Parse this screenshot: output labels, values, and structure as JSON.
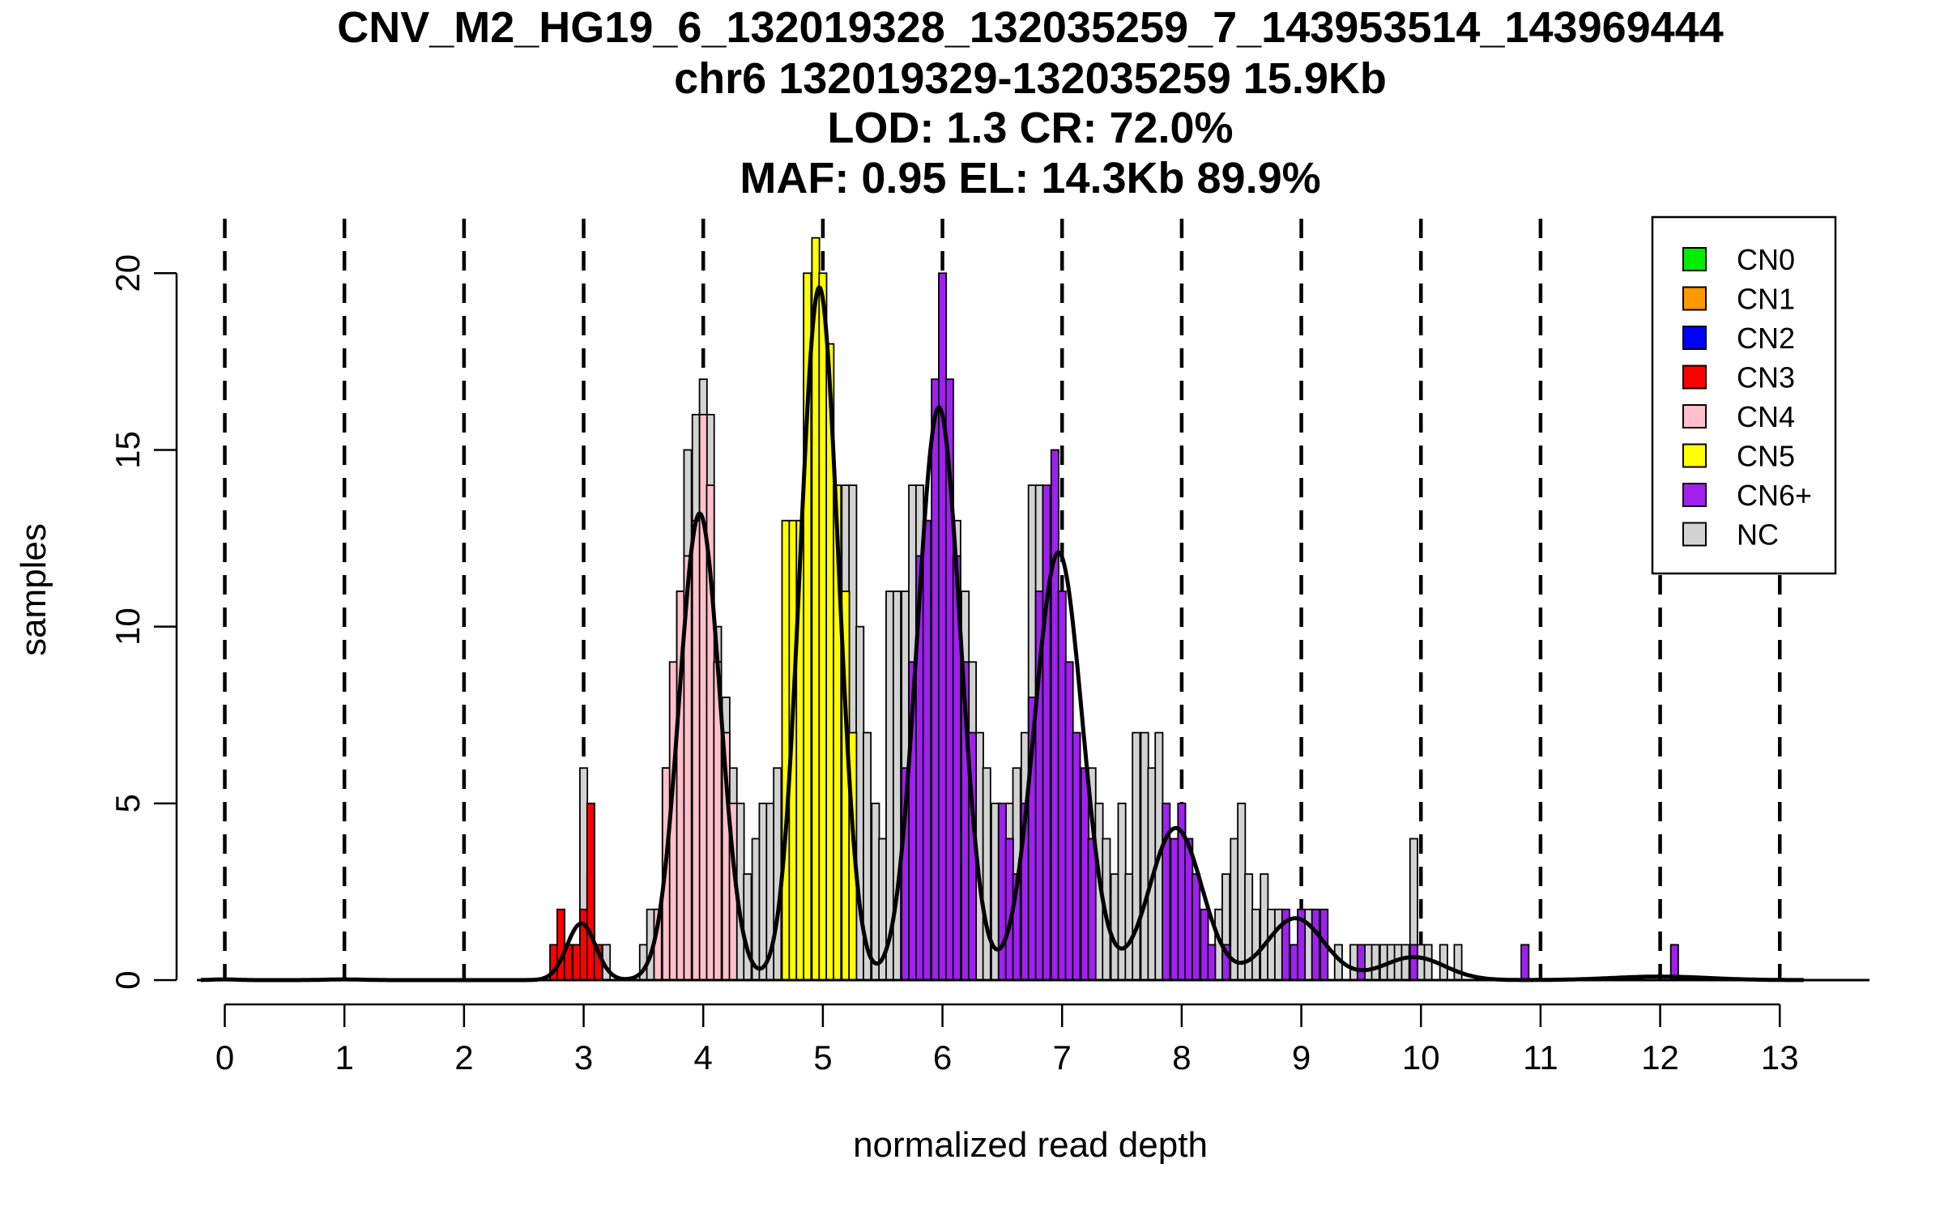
{
  "chart_data": {
    "type": "bar",
    "title_lines": [
      "CNV_M2_HG19_6_132019328_132035259_7_143953514_143969444",
      "chr6 132019329-132035259 15.9Kb",
      "LOD: 1.3 CR: 72.0%",
      "MAF: 0.95 EL: 14.3Kb 89.9%"
    ],
    "xlabel": "normalized read depth",
    "ylabel": "samples",
    "xlim": [
      -0.2,
      13.75
    ],
    "ylim": [
      0,
      22
    ],
    "x_ticks": [
      0,
      1,
      2,
      3,
      4,
      5,
      6,
      7,
      8,
      9,
      10,
      11,
      12,
      13
    ],
    "x_tick_labels": [
      "0",
      "1",
      "2",
      "3",
      "4",
      "5",
      "6",
      "7",
      "8",
      "9",
      "10",
      "11",
      "12",
      "13"
    ],
    "y_ticks": [
      0,
      5,
      10,
      15,
      20
    ],
    "y_tick_labels": [
      "0",
      "5",
      "10",
      "15",
      "20"
    ],
    "bin_width": 0.0625,
    "vlines_dashed": [
      0,
      1,
      2,
      3,
      4,
      5,
      6,
      7,
      8,
      9,
      10,
      11,
      12,
      13
    ],
    "grid": false,
    "legend": {
      "placement": "top-right",
      "items": [
        {
          "label": "CN0",
          "color": "#00ee00"
        },
        {
          "label": "CN1",
          "color": "#ff9900"
        },
        {
          "label": "CN2",
          "color": "#0000ff"
        },
        {
          "label": "CN3",
          "color": "#ff0000"
        },
        {
          "label": "CN4",
          "color": "#ffc0cb"
        },
        {
          "label": "CN5",
          "color": "#ffff00"
        },
        {
          "label": "CN6+",
          "color": "#a020f0"
        },
        {
          "label": "NC",
          "color": "#d3d3d3"
        }
      ]
    },
    "bars": {
      "CN3": [
        [
          2.75,
          1
        ],
        [
          2.81,
          2
        ],
        [
          2.87,
          1
        ],
        [
          2.94,
          1
        ],
        [
          3.0,
          2
        ],
        [
          3.06,
          5
        ],
        [
          3.12,
          1
        ]
      ],
      "CN4": [
        [
          3.62,
          2
        ],
        [
          3.69,
          6
        ],
        [
          3.75,
          9
        ],
        [
          3.81,
          11
        ],
        [
          3.87,
          12
        ],
        [
          3.94,
          13
        ],
        [
          4.0,
          16
        ],
        [
          4.06,
          14
        ],
        [
          4.12,
          9
        ],
        [
          4.19,
          7
        ],
        [
          4.25,
          5
        ]
      ],
      "CN5": [
        [
          4.69,
          13
        ],
        [
          4.75,
          13
        ],
        [
          4.81,
          13
        ],
        [
          4.87,
          20
        ],
        [
          4.94,
          21
        ],
        [
          5.0,
          20
        ],
        [
          5.06,
          18
        ],
        [
          5.12,
          14
        ],
        [
          5.19,
          11
        ],
        [
          5.25,
          7
        ]
      ],
      "CN6+": [
        [
          5.69,
          6
        ],
        [
          5.75,
          9
        ],
        [
          5.81,
          12
        ],
        [
          5.87,
          13
        ],
        [
          5.94,
          17
        ],
        [
          6.0,
          20
        ],
        [
          6.06,
          17
        ],
        [
          6.12,
          12
        ],
        [
          6.19,
          9
        ],
        [
          6.25,
          7
        ],
        [
          6.5,
          5
        ],
        [
          6.56,
          4
        ],
        [
          6.62,
          3
        ],
        [
          6.69,
          5
        ],
        [
          6.75,
          8
        ],
        [
          6.81,
          11
        ],
        [
          6.87,
          14
        ],
        [
          6.94,
          15
        ],
        [
          7.0,
          11
        ],
        [
          7.06,
          9
        ],
        [
          7.12,
          7
        ],
        [
          7.19,
          6
        ],
        [
          7.25,
          4
        ],
        [
          7.87,
          5
        ],
        [
          7.94,
          4
        ],
        [
          8.0,
          5
        ],
        [
          8.06,
          4
        ],
        [
          8.12,
          3
        ],
        [
          8.19,
          2
        ],
        [
          8.25,
          1
        ],
        [
          8.37,
          1
        ],
        [
          8.87,
          2
        ],
        [
          8.94,
          1
        ],
        [
          9.0,
          2
        ],
        [
          9.12,
          2
        ],
        [
          9.19,
          2
        ],
        [
          9.5,
          1
        ],
        [
          9.94,
          1
        ],
        [
          10.87,
          1
        ],
        [
          12.12,
          1
        ]
      ]
    },
    "nc_bars": [
      [
        2.81,
        1
      ],
      [
        2.87,
        1
      ],
      [
        3.0,
        6
      ],
      [
        3.06,
        3
      ],
      [
        3.12,
        1
      ],
      [
        3.19,
        1
      ],
      [
        3.5,
        1
      ],
      [
        3.56,
        2
      ],
      [
        3.62,
        2
      ],
      [
        3.69,
        6
      ],
      [
        3.81,
        11
      ],
      [
        3.87,
        15
      ],
      [
        3.94,
        16
      ],
      [
        4.0,
        17
      ],
      [
        4.06,
        16
      ],
      [
        4.12,
        10
      ],
      [
        4.19,
        8
      ],
      [
        4.25,
        6
      ],
      [
        4.31,
        5
      ],
      [
        4.37,
        3
      ],
      [
        4.44,
        4
      ],
      [
        4.5,
        5
      ],
      [
        4.56,
        5
      ],
      [
        4.62,
        6
      ],
      [
        5.19,
        14
      ],
      [
        5.25,
        14
      ],
      [
        5.31,
        10
      ],
      [
        5.37,
        7
      ],
      [
        5.44,
        5
      ],
      [
        5.5,
        4
      ],
      [
        5.56,
        11
      ],
      [
        5.62,
        11
      ],
      [
        5.69,
        11
      ],
      [
        5.75,
        14
      ],
      [
        5.81,
        14
      ],
      [
        5.87,
        13
      ],
      [
        6.12,
        13
      ],
      [
        6.19,
        11
      ],
      [
        6.25,
        9
      ],
      [
        6.31,
        7
      ],
      [
        6.37,
        6
      ],
      [
        6.44,
        5
      ],
      [
        6.5,
        5
      ],
      [
        6.56,
        5
      ],
      [
        6.62,
        6
      ],
      [
        6.69,
        7
      ],
      [
        6.75,
        14
      ],
      [
        6.81,
        14
      ],
      [
        7.25,
        6
      ],
      [
        7.31,
        5
      ],
      [
        7.37,
        4
      ],
      [
        7.44,
        3
      ],
      [
        7.5,
        5
      ],
      [
        7.56,
        3
      ],
      [
        7.62,
        7
      ],
      [
        7.69,
        7
      ],
      [
        7.75,
        6
      ],
      [
        7.81,
        7
      ],
      [
        8.31,
        2
      ],
      [
        8.37,
        3
      ],
      [
        8.44,
        4
      ],
      [
        8.5,
        5
      ],
      [
        8.56,
        3
      ],
      [
        8.62,
        2
      ],
      [
        8.69,
        3
      ],
      [
        8.75,
        2
      ],
      [
        8.81,
        2
      ],
      [
        8.94,
        1
      ],
      [
        9.06,
        2
      ],
      [
        9.31,
        1
      ],
      [
        9.44,
        1
      ],
      [
        9.56,
        1
      ],
      [
        9.62,
        1
      ],
      [
        9.69,
        1
      ],
      [
        9.75,
        1
      ],
      [
        9.81,
        1
      ],
      [
        9.87,
        1
      ],
      [
        9.94,
        4
      ],
      [
        10.0,
        1
      ],
      [
        10.06,
        1
      ],
      [
        10.19,
        1
      ],
      [
        10.31,
        1
      ]
    ],
    "fit_curve": {
      "components": [
        {
          "mean": 2.98,
          "sd": 0.12,
          "height": 1.6
        },
        {
          "mean": 3.97,
          "sd": 0.17,
          "height": 13.2
        },
        {
          "mean": 4.97,
          "sd": 0.16,
          "height": 19.6
        },
        {
          "mean": 5.97,
          "sd": 0.18,
          "height": 16.2
        },
        {
          "mean": 6.97,
          "sd": 0.2,
          "height": 12.1
        },
        {
          "mean": 7.95,
          "sd": 0.22,
          "height": 4.3
        },
        {
          "mean": 8.95,
          "sd": 0.24,
          "height": 1.75
        },
        {
          "mean": 9.94,
          "sd": 0.26,
          "height": 0.65
        },
        {
          "mean": 0.0,
          "sd": 0.1,
          "height": 0.02
        },
        {
          "mean": 1.0,
          "sd": 0.15,
          "height": 0.02
        },
        {
          "mean": 12.0,
          "sd": 0.4,
          "height": 0.1
        }
      ],
      "x_range": [
        -0.2,
        13.2
      ]
    }
  }
}
